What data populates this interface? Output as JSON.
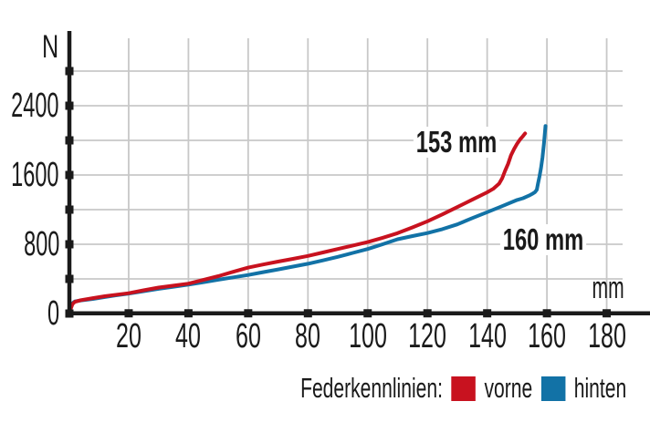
{
  "chart_data": {
    "type": "line",
    "title": "",
    "x_unit_label": "mm",
    "y_unit_label": "N",
    "xlim": [
      0,
      195
    ],
    "ylim": [
      0,
      3150
    ],
    "grid": true,
    "x_ticks": [
      20,
      40,
      60,
      80,
      100,
      120,
      140,
      160,
      180
    ],
    "y_ticks": [
      0,
      400,
      800,
      1200,
      1600,
      2000,
      2400,
      2800
    ],
    "y_tick_labels_shown": [
      0,
      800,
      1600,
      2400
    ],
    "series": [
      {
        "name": "vorne",
        "color": "#c8121f",
        "max_travel_mm": 153,
        "points": [
          [
            0,
            0
          ],
          [
            0.6,
            55
          ],
          [
            1.2,
            110
          ],
          [
            2,
            135
          ],
          [
            4,
            155
          ],
          [
            8,
            178
          ],
          [
            12,
            200
          ],
          [
            16,
            218
          ],
          [
            20,
            235
          ],
          [
            25,
            268
          ],
          [
            30,
            300
          ],
          [
            35,
            322
          ],
          [
            40,
            345
          ],
          [
            45,
            388
          ],
          [
            50,
            432
          ],
          [
            55,
            482
          ],
          [
            60,
            530
          ],
          [
            65,
            566
          ],
          [
            70,
            600
          ],
          [
            75,
            632
          ],
          [
            80,
            665
          ],
          [
            85,
            705
          ],
          [
            90,
            745
          ],
          [
            95,
            785
          ],
          [
            100,
            825
          ],
          [
            105,
            875
          ],
          [
            110,
            928
          ],
          [
            115,
            995
          ],
          [
            120,
            1065
          ],
          [
            125,
            1145
          ],
          [
            130,
            1230
          ],
          [
            135,
            1315
          ],
          [
            140,
            1400
          ],
          [
            142,
            1440
          ],
          [
            144,
            1500
          ],
          [
            145,
            1560
          ],
          [
            146,
            1650
          ],
          [
            147,
            1730
          ],
          [
            148,
            1830
          ],
          [
            149,
            1900
          ],
          [
            150,
            1960
          ],
          [
            151,
            2010
          ],
          [
            152,
            2050
          ],
          [
            152.7,
            2080
          ]
        ]
      },
      {
        "name": "hinten",
        "color": "#1272a6",
        "max_travel_mm": 160,
        "points": [
          [
            0,
            0
          ],
          [
            0.6,
            60
          ],
          [
            1.2,
            120
          ],
          [
            2,
            140
          ],
          [
            4,
            152
          ],
          [
            8,
            168
          ],
          [
            12,
            190
          ],
          [
            16,
            212
          ],
          [
            20,
            230
          ],
          [
            25,
            258
          ],
          [
            30,
            285
          ],
          [
            35,
            310
          ],
          [
            40,
            334
          ],
          [
            45,
            362
          ],
          [
            50,
            390
          ],
          [
            55,
            418
          ],
          [
            60,
            445
          ],
          [
            65,
            478
          ],
          [
            70,
            510
          ],
          [
            75,
            542
          ],
          [
            80,
            575
          ],
          [
            85,
            614
          ],
          [
            90,
            655
          ],
          [
            95,
            700
          ],
          [
            100,
            745
          ],
          [
            105,
            800
          ],
          [
            110,
            858
          ],
          [
            115,
            895
          ],
          [
            120,
            930
          ],
          [
            125,
            975
          ],
          [
            130,
            1030
          ],
          [
            135,
            1102
          ],
          [
            140,
            1170
          ],
          [
            145,
            1240
          ],
          [
            150,
            1312
          ],
          [
            152,
            1332
          ],
          [
            154,
            1362
          ],
          [
            155,
            1380
          ],
          [
            156,
            1402
          ],
          [
            156.6,
            1430
          ],
          [
            157,
            1500
          ],
          [
            157.5,
            1580
          ],
          [
            158,
            1680
          ],
          [
            158.5,
            1800
          ],
          [
            159,
            1960
          ],
          [
            159.3,
            2080
          ],
          [
            159.5,
            2165
          ]
        ]
      }
    ],
    "annotations": [
      {
        "series": "vorne",
        "text": "153 mm",
        "x_mm": 129.7,
        "y_n": 1980
      },
      {
        "series": "hinten",
        "text": "160 mm",
        "x_mm": 158.8,
        "y_n": 853
      }
    ]
  },
  "legend": {
    "title": "Federkennlinien:",
    "items": [
      {
        "label": "vorne",
        "color": "#c8121f"
      },
      {
        "label": "hinten",
        "color": "#1272a6"
      }
    ]
  },
  "colors": {
    "grid": "#c8c8c8",
    "axis": "#1a1a1a",
    "text": "#1a1a1a"
  }
}
